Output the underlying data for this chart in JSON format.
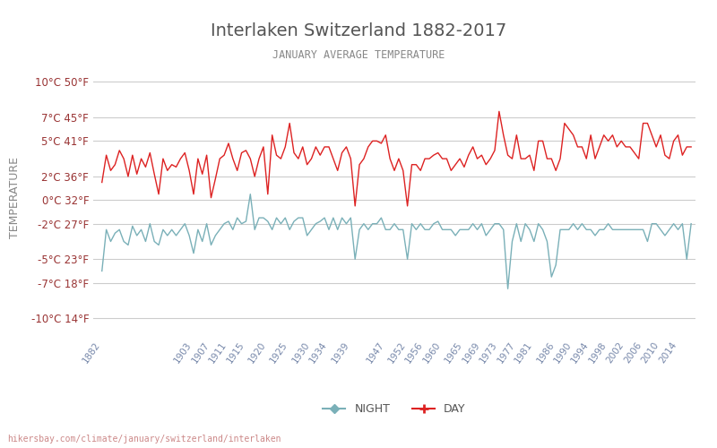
{
  "title": "Interlaken Switzerland 1882-2017",
  "subtitle": "JANUARY AVERAGE TEMPERATURE",
  "xlabel": "",
  "ylabel": "TEMPERATURE",
  "watermark": "hikersbay.com/climate/january/switzerland/interlaken",
  "bg_color": "#ffffff",
  "grid_color": "#cccccc",
  "title_color": "#555555",
  "subtitle_color": "#888888",
  "ylabel_color": "#888888",
  "tick_color": "#993333",
  "day_color": "#dd2222",
  "night_color": "#7ab0b8",
  "yticks_c": [
    -10,
    -7,
    -5,
    -2,
    0,
    2,
    5,
    7,
    10
  ],
  "yticks_f": [
    14,
    18,
    23,
    27,
    32,
    36,
    41,
    45,
    50
  ],
  "ylim": [
    -11.5,
    12
  ],
  "years": [
    1882,
    1883,
    1884,
    1885,
    1886,
    1887,
    1888,
    1889,
    1890,
    1891,
    1892,
    1893,
    1894,
    1895,
    1896,
    1897,
    1898,
    1899,
    1900,
    1901,
    1902,
    1903,
    1904,
    1905,
    1906,
    1907,
    1908,
    1909,
    1910,
    1911,
    1912,
    1913,
    1914,
    1915,
    1916,
    1917,
    1918,
    1919,
    1920,
    1921,
    1922,
    1923,
    1924,
    1925,
    1926,
    1927,
    1928,
    1929,
    1930,
    1931,
    1932,
    1933,
    1934,
    1935,
    1936,
    1937,
    1938,
    1939,
    1940,
    1941,
    1942,
    1943,
    1944,
    1945,
    1946,
    1947,
    1948,
    1949,
    1950,
    1951,
    1952,
    1953,
    1954,
    1955,
    1956,
    1957,
    1958,
    1959,
    1960,
    1961,
    1962,
    1963,
    1964,
    1965,
    1966,
    1967,
    1968,
    1969,
    1970,
    1971,
    1972,
    1973,
    1974,
    1975,
    1976,
    1977,
    1978,
    1979,
    1980,
    1981,
    1982,
    1983,
    1984,
    1985,
    1986,
    1987,
    1988,
    1989,
    1990,
    1991,
    1992,
    1993,
    1994,
    1995,
    1996,
    1997,
    1998,
    1999,
    2000,
    2001,
    2002,
    2003,
    2004,
    2005,
    2006,
    2007,
    2008,
    2009,
    2010,
    2011,
    2012,
    2013,
    2014,
    2015,
    2016,
    2017
  ],
  "day_temps": [
    1.5,
    3.8,
    2.5,
    3.0,
    4.2,
    3.5,
    2.0,
    3.8,
    2.2,
    3.5,
    2.8,
    4.0,
    2.2,
    0.5,
    3.5,
    2.5,
    3.0,
    2.8,
    3.5,
    4.0,
    2.5,
    0.5,
    3.5,
    2.2,
    3.8,
    0.2,
    1.8,
    3.5,
    3.8,
    4.8,
    3.5,
    2.5,
    4.0,
    4.2,
    3.5,
    2.0,
    3.5,
    4.5,
    0.5,
    5.5,
    3.8,
    3.5,
    4.5,
    6.5,
    4.0,
    3.5,
    4.5,
    3.0,
    3.5,
    4.5,
    3.8,
    4.5,
    4.5,
    3.5,
    2.5,
    4.0,
    4.5,
    3.5,
    -0.5,
    3.0,
    3.5,
    4.5,
    5.0,
    5.0,
    4.8,
    5.5,
    3.5,
    2.5,
    3.5,
    2.5,
    -0.5,
    3.0,
    3.0,
    2.5,
    3.5,
    3.5,
    3.8,
    4.0,
    3.5,
    3.5,
    2.5,
    3.0,
    3.5,
    2.8,
    3.8,
    4.5,
    3.5,
    3.8,
    3.0,
    3.5,
    4.2,
    7.5,
    5.5,
    3.8,
    3.5,
    5.5,
    3.5,
    3.5,
    3.8,
    2.5,
    5.0,
    5.0,
    3.5,
    3.5,
    2.5,
    3.5,
    6.5,
    6.0,
    5.5,
    4.5,
    4.5,
    3.5,
    5.5,
    3.5,
    4.5,
    5.5,
    5.0,
    5.5,
    4.5,
    5.0,
    4.5,
    4.5,
    4.0,
    3.5,
    6.5,
    6.5,
    5.5,
    4.5,
    5.5,
    3.8,
    3.5,
    5.0,
    5.5,
    3.8,
    4.5,
    4.5
  ],
  "night_temps": [
    -6.0,
    -2.5,
    -3.5,
    -2.8,
    -2.5,
    -3.5,
    -3.8,
    -2.2,
    -3.0,
    -2.5,
    -3.5,
    -2.0,
    -3.5,
    -3.8,
    -2.5,
    -3.0,
    -2.5,
    -3.0,
    -2.5,
    -2.0,
    -3.0,
    -4.5,
    -2.5,
    -3.5,
    -2.0,
    -3.8,
    -3.0,
    -2.5,
    -2.0,
    -1.8,
    -2.5,
    -1.5,
    -2.0,
    -1.8,
    0.5,
    -2.5,
    -1.5,
    -1.5,
    -1.8,
    -2.5,
    -1.5,
    -2.0,
    -1.5,
    -2.5,
    -1.8,
    -1.5,
    -1.5,
    -3.0,
    -2.5,
    -2.0,
    -1.8,
    -1.5,
    -2.5,
    -1.5,
    -2.5,
    -1.5,
    -2.0,
    -1.5,
    -5.0,
    -2.5,
    -2.0,
    -2.5,
    -2.0,
    -2.0,
    -1.5,
    -2.5,
    -2.5,
    -2.0,
    -2.5,
    -2.5,
    -5.0,
    -2.0,
    -2.5,
    -2.0,
    -2.5,
    -2.5,
    -2.0,
    -1.8,
    -2.5,
    -2.5,
    -2.5,
    -3.0,
    -2.5,
    -2.5,
    -2.5,
    -2.0,
    -2.5,
    -2.0,
    -3.0,
    -2.5,
    -2.0,
    -2.0,
    -2.5,
    -7.5,
    -3.5,
    -2.0,
    -3.5,
    -2.0,
    -2.5,
    -3.5,
    -2.0,
    -2.5,
    -3.5,
    -6.5,
    -5.5,
    -2.5,
    -2.5,
    -2.5,
    -2.0,
    -2.5,
    -2.0,
    -2.5,
    -2.5,
    -3.0,
    -2.5,
    -2.5,
    -2.0,
    -2.5,
    -2.5,
    -2.5,
    -2.5,
    -2.5,
    -2.5,
    -2.5,
    -2.5,
    -3.5,
    -2.0,
    -2.0,
    -2.5,
    -3.0,
    -2.5,
    -2.0,
    -2.5,
    -2.0,
    -5.0,
    -2.0
  ]
}
